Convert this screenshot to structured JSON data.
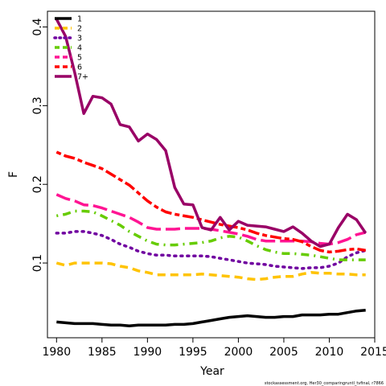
{
  "chart_data": {
    "type": "line",
    "xlabel": "Year",
    "ylabel": "F",
    "xlim": [
      1979,
      2015
    ],
    "ylim": [
      0.005,
      0.42
    ],
    "x_ticks": [
      1980,
      1985,
      1990,
      1995,
      2000,
      2005,
      2010,
      2015
    ],
    "y_ticks": [
      0.1,
      0.2,
      0.3,
      0.4
    ],
    "legend_position": "top-left",
    "footnote": "stockassessment.org, Her30_comparingruntl_tvfinal, r7866",
    "x": [
      1980,
      1981,
      1982,
      1983,
      1984,
      1985,
      1986,
      1987,
      1988,
      1989,
      1990,
      1991,
      1992,
      1993,
      1994,
      1995,
      1996,
      1997,
      1998,
      1999,
      2000,
      2001,
      2002,
      2003,
      2004,
      2005,
      2006,
      2007,
      2008,
      2009,
      2010,
      2011,
      2012,
      2013,
      2014
    ],
    "series": [
      {
        "name": "1",
        "color": "#000000",
        "dash": "solid",
        "values": [
          0.025,
          0.024,
          0.023,
          0.023,
          0.023,
          0.022,
          0.021,
          0.021,
          0.02,
          0.021,
          0.021,
          0.021,
          0.021,
          0.022,
          0.022,
          0.023,
          0.025,
          0.027,
          0.029,
          0.031,
          0.032,
          0.033,
          0.032,
          0.031,
          0.031,
          0.032,
          0.032,
          0.034,
          0.034,
          0.034,
          0.035,
          0.035,
          0.037,
          0.039,
          0.04
        ]
      },
      {
        "name": "2",
        "color": "#FFC300",
        "dash": "dash",
        "values": [
          0.1,
          0.097,
          0.1,
          0.1,
          0.1,
          0.1,
          0.099,
          0.096,
          0.094,
          0.09,
          0.088,
          0.085,
          0.085,
          0.085,
          0.085,
          0.085,
          0.086,
          0.085,
          0.084,
          0.083,
          0.082,
          0.08,
          0.079,
          0.08,
          0.082,
          0.083,
          0.083,
          0.086,
          0.088,
          0.087,
          0.087,
          0.086,
          0.086,
          0.085,
          0.085
        ]
      },
      {
        "name": "3",
        "color": "#7000A0",
        "dash": "dot",
        "values": [
          0.138,
          0.138,
          0.14,
          0.14,
          0.138,
          0.135,
          0.13,
          0.124,
          0.12,
          0.115,
          0.112,
          0.11,
          0.11,
          0.109,
          0.109,
          0.109,
          0.109,
          0.108,
          0.106,
          0.104,
          0.102,
          0.1,
          0.099,
          0.098,
          0.096,
          0.095,
          0.094,
          0.093,
          0.094,
          0.094,
          0.096,
          0.1,
          0.108,
          0.113,
          0.116
        ]
      },
      {
        "name": "4",
        "color": "#66CC00",
        "dash": "dashdot",
        "values": [
          0.16,
          0.162,
          0.166,
          0.166,
          0.165,
          0.16,
          0.154,
          0.148,
          0.14,
          0.134,
          0.128,
          0.124,
          0.123,
          0.123,
          0.124,
          0.125,
          0.126,
          0.128,
          0.132,
          0.134,
          0.133,
          0.128,
          0.122,
          0.117,
          0.114,
          0.112,
          0.112,
          0.111,
          0.11,
          0.108,
          0.106,
          0.104,
          0.104,
          0.104,
          0.104
        ]
      },
      {
        "name": "5",
        "color": "#FF1493",
        "dash": "longdash",
        "values": [
          0.187,
          0.182,
          0.179,
          0.174,
          0.173,
          0.17,
          0.166,
          0.162,
          0.158,
          0.152,
          0.145,
          0.143,
          0.143,
          0.143,
          0.144,
          0.144,
          0.144,
          0.143,
          0.141,
          0.139,
          0.137,
          0.134,
          0.13,
          0.128,
          0.128,
          0.128,
          0.128,
          0.128,
          0.127,
          0.125,
          0.124,
          0.126,
          0.13,
          0.136,
          0.139
        ]
      },
      {
        "name": "6",
        "color": "#FF0000",
        "dash": "twodash",
        "values": [
          0.241,
          0.236,
          0.233,
          0.228,
          0.224,
          0.22,
          0.213,
          0.206,
          0.199,
          0.189,
          0.179,
          0.171,
          0.165,
          0.162,
          0.16,
          0.158,
          0.155,
          0.152,
          0.149,
          0.147,
          0.145,
          0.142,
          0.138,
          0.135,
          0.133,
          0.131,
          0.13,
          0.127,
          0.121,
          0.116,
          0.114,
          0.115,
          0.117,
          0.118,
          0.116
        ]
      },
      {
        "name": "7+",
        "color": "#990066",
        "dash": "solid",
        "values": [
          0.41,
          0.388,
          0.342,
          0.29,
          0.312,
          0.31,
          0.302,
          0.276,
          0.273,
          0.255,
          0.264,
          0.257,
          0.243,
          0.196,
          0.175,
          0.174,
          0.145,
          0.142,
          0.158,
          0.142,
          0.153,
          0.148,
          0.147,
          0.146,
          0.143,
          0.14,
          0.146,
          0.138,
          0.128,
          0.121,
          0.124,
          0.145,
          0.162,
          0.155,
          0.138
        ]
      }
    ]
  }
}
